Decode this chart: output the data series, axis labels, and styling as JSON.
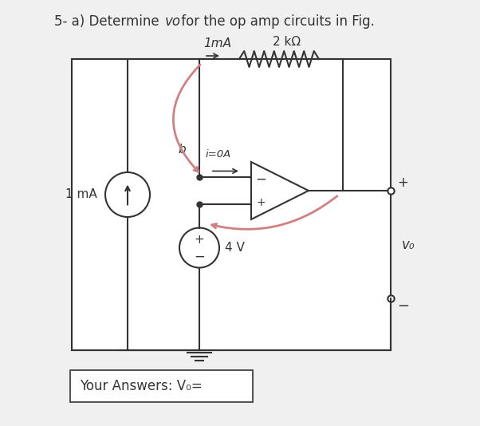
{
  "background_color": "#f0f0f0",
  "box_color": "#ffffff",
  "line_color": "#333333",
  "pink_color": "#d08080",
  "title_normal": "5- a) Determine ",
  "title_italic": "vo",
  "title_rest": " for the op amp circuits in Fig.",
  "title_fontsize": 12,
  "label_1mA_top": "1mA",
  "label_2kohm": "2 kΩ",
  "label_i0A": "i=0A",
  "label_4V": "4 V",
  "label_1mA_left": "1 mA",
  "label_vo": "v₀",
  "label_b": "b",
  "answer_box_text": "Your Answers: V₀="
}
